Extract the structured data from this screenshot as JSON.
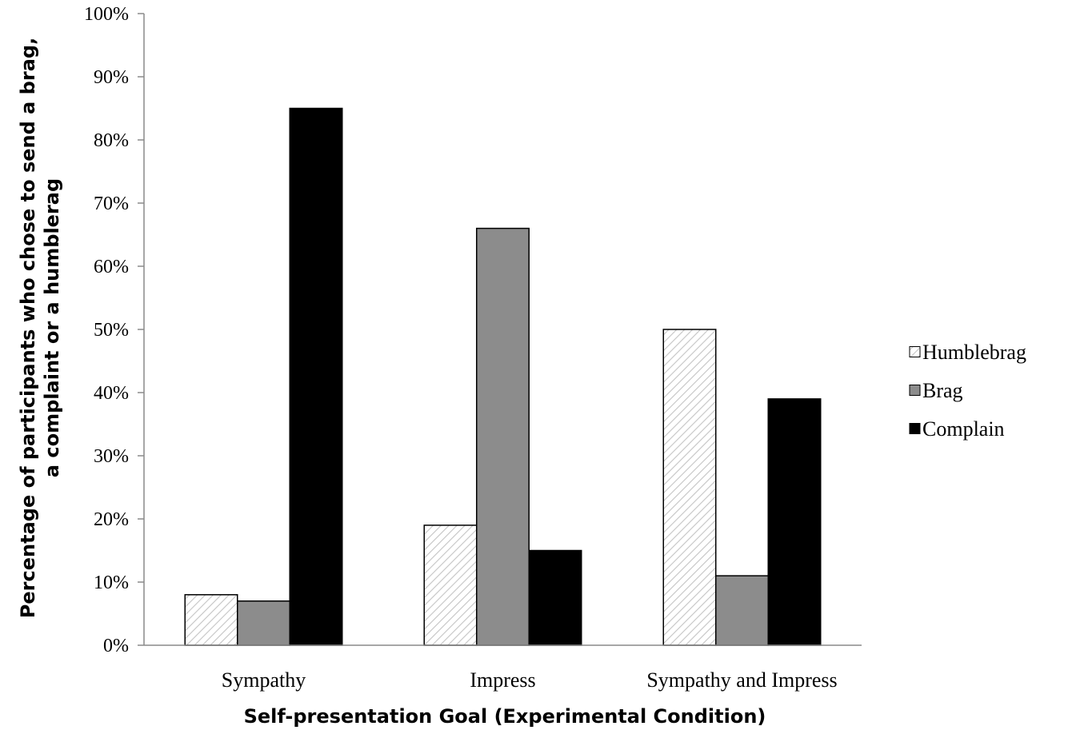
{
  "chart_data": {
    "type": "bar",
    "categories": [
      "Sympathy",
      "Impress",
      "Sympathy and Impress"
    ],
    "series": [
      {
        "name": "Humblebrag",
        "values": [
          8,
          19,
          50
        ],
        "color": "#ffffff",
        "pattern": "diagonal-hatch"
      },
      {
        "name": "Brag",
        "values": [
          7,
          66,
          11
        ],
        "color": "#8c8c8c"
      },
      {
        "name": "Complain",
        "values": [
          85,
          15,
          39
        ],
        "color": "#000000"
      }
    ],
    "ylim": [
      0,
      100
    ],
    "yticks": [
      0,
      10,
      20,
      30,
      40,
      50,
      60,
      70,
      80,
      90,
      100
    ],
    "ytick_suffix": "%",
    "xlabel": "Self-presentation Goal (Experimental Condition)",
    "ylabel_line1": "Percentage of participants who chose to send a brag,",
    "ylabel_line2": "a complaint or a humblerag",
    "legend_position": "right",
    "grid": false
  }
}
